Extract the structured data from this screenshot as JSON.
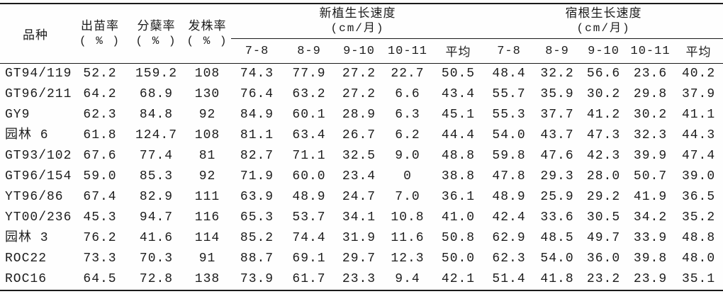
{
  "table": {
    "columns": {
      "variety": "品种",
      "emergence": "出苗率",
      "tillering": "分蘖率",
      "sprouting": "发株率",
      "percent_unit": "( % )",
      "new_plant_group": "新植生长速度",
      "ratoon_group": "宿根生长速度",
      "speed_unit": "(cm/月)",
      "sub_periods": [
        "7-8",
        "8-9",
        "9-10",
        "10-11",
        "平均"
      ]
    },
    "rows": [
      {
        "variety": "GT94/119",
        "values": [
          "52.2",
          "159.2",
          "108",
          "74.3",
          "77.9",
          "27.2",
          "22.7",
          "50.5",
          "48.4",
          "32.2",
          "56.6",
          "23.6",
          "40.2"
        ]
      },
      {
        "variety": "GT96/211",
        "values": [
          "64.2",
          "68.9",
          "130",
          "76.4",
          "63.2",
          "27.2",
          "6.6",
          "43.4",
          "55.7",
          "35.9",
          "30.2",
          "29.8",
          "37.9"
        ]
      },
      {
        "variety": "GY9",
        "values": [
          "62.3",
          "84.8",
          "92",
          "84.9",
          "60.1",
          "28.9",
          "6.3",
          "45.1",
          "55.3",
          "37.7",
          "41.2",
          "30.2",
          "41.1"
        ]
      },
      {
        "variety": "园林 6",
        "values": [
          "61.8",
          "124.7",
          "108",
          "81.1",
          "63.4",
          "26.7",
          "6.2",
          "44.4",
          "54.0",
          "43.7",
          "47.3",
          "32.3",
          "44.3"
        ]
      },
      {
        "variety": "GT93/102",
        "values": [
          "67.6",
          "77.4",
          "81",
          "82.7",
          "71.1",
          "32.5",
          "9.0",
          "48.8",
          "59.8",
          "47.6",
          "42.3",
          "39.9",
          "47.4"
        ]
      },
      {
        "variety": "GT96/154",
        "values": [
          "59.0",
          "85.3",
          "92",
          "71.9",
          "60.0",
          "23.4",
          "0",
          "38.8",
          "47.8",
          "29.3",
          "28.0",
          "50.7",
          "39.0"
        ]
      },
      {
        "variety": "YT96/86",
        "values": [
          "67.4",
          "82.9",
          "111",
          "63.9",
          "48.9",
          "24.7",
          "7.0",
          "36.1",
          "48.9",
          "25.9",
          "29.2",
          "41.9",
          "36.5"
        ]
      },
      {
        "variety": "YT00/236",
        "values": [
          "45.3",
          "94.7",
          "116",
          "65.3",
          "53.7",
          "34.1",
          "10.8",
          "41.0",
          "42.4",
          "33.6",
          "30.5",
          "34.2",
          "35.2"
        ]
      },
      {
        "variety": "园林 3",
        "values": [
          "76.2",
          "41.6",
          "114",
          "85.2",
          "74.4",
          "31.9",
          "11.6",
          "50.8",
          "62.9",
          "48.5",
          "49.7",
          "33.9",
          "48.8"
        ]
      },
      {
        "variety": "ROC22",
        "values": [
          "73.3",
          "70.3",
          "91",
          "88.7",
          "69.1",
          "29.7",
          "12.3",
          "50.0",
          "62.3",
          "54.0",
          "36.0",
          "39.8",
          "48.0"
        ]
      },
      {
        "variety": "ROC16",
        "values": [
          "64.5",
          "72.8",
          "138",
          "73.9",
          "61.7",
          "23.3",
          "9.4",
          "42.1",
          "51.4",
          "41.8",
          "23.2",
          "23.9",
          "35.1"
        ]
      }
    ]
  }
}
